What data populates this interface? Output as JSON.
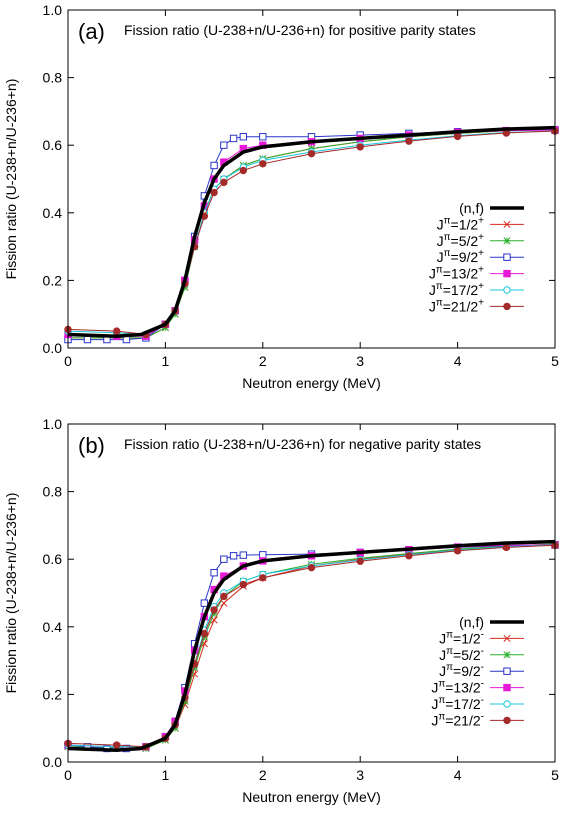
{
  "chart_data": [
    {
      "type": "line",
      "panel_label": "(a)",
      "title": "Fission ratio (U-238+n/U-236+n) for positive parity states",
      "xlabel": "Neutron energy (MeV)",
      "ylabel": "Fission ratio (U-238+n/U-236+n)",
      "xlim": [
        0,
        5
      ],
      "ylim": [
        0,
        1.0
      ],
      "xticks": [
        "0",
        "1",
        "2",
        "3",
        "4",
        "5"
      ],
      "yticks": [
        "0.0",
        "0.2",
        "0.4",
        "0.6",
        "0.8",
        "1.0"
      ],
      "legend_position": "right",
      "series": [
        {
          "name": "(n,f)",
          "color": "#000000",
          "marker": "none",
          "width": 3.5,
          "x": [
            0,
            0.5,
            0.75,
            1.0,
            1.1,
            1.2,
            1.3,
            1.4,
            1.5,
            1.6,
            1.8,
            2.0,
            2.5,
            3.0,
            3.5,
            4.0,
            4.5,
            5.0
          ],
          "y": [
            0.04,
            0.035,
            0.04,
            0.07,
            0.11,
            0.2,
            0.33,
            0.43,
            0.5,
            0.54,
            0.58,
            0.595,
            0.61,
            0.62,
            0.63,
            0.64,
            0.648,
            0.652
          ]
        },
        {
          "name": "Jπ=1/2+",
          "label_base": "J",
          "label_sup1": "π",
          "label_mid": "=1/2",
          "label_sup2": "+",
          "color": "#d62a1e",
          "marker": "cross",
          "x": [
            0,
            0.8,
            1.0,
            1.1,
            1.2,
            1.3,
            1.4,
            1.5,
            1.6,
            1.8,
            2.0,
            2.5,
            3.0,
            3.5,
            4.0,
            4.5,
            5.0
          ],
          "y": [
            0.03,
            0.03,
            0.06,
            0.1,
            0.18,
            0.3,
            0.4,
            0.47,
            0.5,
            0.54,
            0.56,
            0.59,
            0.61,
            0.625,
            0.635,
            0.643,
            0.647
          ]
        },
        {
          "name": "Jπ=5/2+",
          "label_base": "J",
          "label_sup1": "π",
          "label_mid": "=5/2",
          "label_sup2": "+",
          "color": "#2bb02b",
          "marker": "star",
          "x": [
            0,
            0.8,
            1.0,
            1.1,
            1.2,
            1.3,
            1.4,
            1.5,
            1.6,
            1.8,
            2.0,
            2.5,
            3.0,
            3.5,
            4.0,
            4.5,
            5.0
          ],
          "y": [
            0.03,
            0.03,
            0.06,
            0.1,
            0.18,
            0.3,
            0.4,
            0.47,
            0.5,
            0.54,
            0.56,
            0.59,
            0.61,
            0.625,
            0.635,
            0.643,
            0.647
          ]
        },
        {
          "name": "Jπ=9/2+",
          "label_base": "J",
          "label_sup1": "π",
          "label_mid": "=9/2",
          "label_sup2": "+",
          "color": "#2a35c8",
          "marker": "square",
          "x": [
            0,
            0.2,
            0.4,
            0.6,
            0.8,
            1.0,
            1.1,
            1.2,
            1.3,
            1.4,
            1.5,
            1.6,
            1.7,
            1.8,
            2.0,
            2.5,
            3.0,
            3.5,
            4.0,
            4.5,
            5.0
          ],
          "y": [
            0.025,
            0.025,
            0.025,
            0.025,
            0.03,
            0.07,
            0.11,
            0.2,
            0.33,
            0.45,
            0.54,
            0.6,
            0.62,
            0.625,
            0.625,
            0.625,
            0.63,
            0.635,
            0.64,
            0.643,
            0.645
          ]
        },
        {
          "name": "Jπ=13/2+",
          "label_base": "J",
          "label_sup1": "π",
          "label_mid": "=13/2",
          "label_sup2": "+",
          "color": "#e619d6",
          "marker": "filled-square",
          "x": [
            0,
            0.5,
            0.8,
            1.0,
            1.1,
            1.2,
            1.3,
            1.4,
            1.5,
            1.6,
            1.8,
            2.0,
            2.5,
            3.0,
            3.5,
            4.0,
            4.5,
            5.0
          ],
          "y": [
            0.04,
            0.035,
            0.035,
            0.07,
            0.11,
            0.2,
            0.32,
            0.42,
            0.5,
            0.55,
            0.59,
            0.6,
            0.61,
            0.62,
            0.63,
            0.638,
            0.643,
            0.645
          ]
        },
        {
          "name": "Jπ=17/2+",
          "label_base": "J",
          "label_sup1": "π",
          "label_mid": "=17/2",
          "label_sup2": "+",
          "color": "#19c8dc",
          "marker": "circle",
          "x": [
            0,
            0.5,
            0.8,
            1.0,
            1.1,
            1.2,
            1.3,
            1.4,
            1.5,
            1.6,
            1.8,
            2.0,
            2.5,
            3.0,
            3.5,
            4.0,
            4.5,
            5.0
          ],
          "y": [
            0.05,
            0.045,
            0.04,
            0.07,
            0.11,
            0.19,
            0.3,
            0.4,
            0.47,
            0.5,
            0.535,
            0.555,
            0.58,
            0.6,
            0.615,
            0.628,
            0.638,
            0.642
          ]
        },
        {
          "name": "Jπ=21/2+",
          "label_base": "J",
          "label_sup1": "π",
          "label_mid": "=21/2",
          "label_sup2": "+",
          "color": "#a52a2a",
          "marker": "filled-circle",
          "x": [
            0,
            0.5,
            0.8,
            1.0,
            1.1,
            1.2,
            1.3,
            1.4,
            1.5,
            1.6,
            1.8,
            2.0,
            2.5,
            3.0,
            3.5,
            4.0,
            4.5,
            5.0
          ],
          "y": [
            0.055,
            0.05,
            0.04,
            0.07,
            0.11,
            0.19,
            0.3,
            0.39,
            0.46,
            0.49,
            0.525,
            0.545,
            0.575,
            0.595,
            0.612,
            0.626,
            0.636,
            0.642
          ]
        }
      ]
    },
    {
      "type": "line",
      "panel_label": "(b)",
      "title": "Fission ratio (U-238+n/U-236+n) for negative parity states",
      "xlabel": "Neutron energy (MeV)",
      "ylabel": "Fission ratio (U-238+n/U-236+n)",
      "xlim": [
        0,
        5
      ],
      "ylim": [
        0,
        1.0
      ],
      "xticks": [
        "0",
        "1",
        "2",
        "3",
        "4",
        "5"
      ],
      "yticks": [
        "0.0",
        "0.2",
        "0.4",
        "0.6",
        "0.8",
        "1.0"
      ],
      "legend_position": "right",
      "series": [
        {
          "name": "(n,f)",
          "color": "#000000",
          "marker": "none",
          "width": 3.5,
          "x": [
            0,
            0.5,
            0.75,
            1.0,
            1.1,
            1.2,
            1.3,
            1.4,
            1.5,
            1.6,
            1.8,
            2.0,
            2.5,
            3.0,
            3.5,
            4.0,
            4.5,
            5.0
          ],
          "y": [
            0.04,
            0.035,
            0.04,
            0.07,
            0.11,
            0.2,
            0.33,
            0.43,
            0.5,
            0.54,
            0.58,
            0.595,
            0.61,
            0.62,
            0.63,
            0.64,
            0.648,
            0.652
          ]
        },
        {
          "name": "Jπ=1/2-",
          "label_base": "J",
          "label_sup1": "π",
          "label_mid": "=1/2",
          "label_sup2": "-",
          "color": "#d62a1e",
          "marker": "cross",
          "x": [
            0,
            0.8,
            1.0,
            1.1,
            1.2,
            1.3,
            1.4,
            1.5,
            1.6,
            1.8,
            2.0,
            2.5,
            3.0,
            3.5,
            4.0,
            4.5,
            5.0
          ],
          "y": [
            0.045,
            0.04,
            0.065,
            0.1,
            0.17,
            0.26,
            0.35,
            0.42,
            0.47,
            0.52,
            0.545,
            0.58,
            0.6,
            0.615,
            0.628,
            0.638,
            0.644
          ]
        },
        {
          "name": "Jπ=5/2-",
          "label_base": "J",
          "label_sup1": "π",
          "label_mid": "=5/2",
          "label_sup2": "-",
          "color": "#2bb02b",
          "marker": "star",
          "x": [
            0,
            0.8,
            1.0,
            1.1,
            1.2,
            1.3,
            1.4,
            1.5,
            1.6,
            1.8,
            2.0,
            2.5,
            3.0,
            3.5,
            4.0,
            4.5,
            5.0
          ],
          "y": [
            0.045,
            0.04,
            0.065,
            0.1,
            0.18,
            0.28,
            0.37,
            0.44,
            0.49,
            0.535,
            0.555,
            0.585,
            0.603,
            0.617,
            0.63,
            0.639,
            0.645
          ]
        },
        {
          "name": "Jπ=9/2-",
          "label_base": "J",
          "label_sup1": "π",
          "label_mid": "=9/2",
          "label_sup2": "-",
          "color": "#2a35c8",
          "marker": "square",
          "x": [
            0,
            0.2,
            0.4,
            0.6,
            0.8,
            1.0,
            1.1,
            1.2,
            1.3,
            1.4,
            1.5,
            1.6,
            1.7,
            1.8,
            2.0,
            2.5,
            3.0,
            3.5,
            4.0,
            4.5,
            5.0
          ],
          "y": [
            0.05,
            0.045,
            0.04,
            0.04,
            0.045,
            0.075,
            0.12,
            0.22,
            0.35,
            0.47,
            0.56,
            0.6,
            0.61,
            0.612,
            0.613,
            0.615,
            0.62,
            0.628,
            0.635,
            0.64,
            0.642
          ]
        },
        {
          "name": "Jπ=13/2-",
          "label_base": "J",
          "label_sup1": "π",
          "label_mid": "=13/2",
          "label_sup2": "-",
          "color": "#e619d6",
          "marker": "filled-square",
          "x": [
            0,
            0.5,
            0.8,
            1.0,
            1.1,
            1.2,
            1.3,
            1.4,
            1.5,
            1.6,
            1.8,
            2.0,
            2.5,
            3.0,
            3.5,
            4.0,
            4.5,
            5.0
          ],
          "y": [
            0.05,
            0.045,
            0.045,
            0.075,
            0.12,
            0.21,
            0.33,
            0.43,
            0.51,
            0.55,
            0.58,
            0.595,
            0.61,
            0.62,
            0.628,
            0.636,
            0.641,
            0.643
          ]
        },
        {
          "name": "Jπ=17/2-",
          "label_base": "J",
          "label_sup1": "π",
          "label_mid": "=17/2",
          "label_sup2": "-",
          "color": "#19c8dc",
          "marker": "circle",
          "x": [
            0,
            0.5,
            0.8,
            1.0,
            1.1,
            1.2,
            1.3,
            1.4,
            1.5,
            1.6,
            1.8,
            2.0,
            2.5,
            3.0,
            3.5,
            4.0,
            4.5,
            5.0
          ],
          "y": [
            0.05,
            0.045,
            0.045,
            0.07,
            0.11,
            0.19,
            0.29,
            0.39,
            0.46,
            0.5,
            0.535,
            0.555,
            0.58,
            0.598,
            0.613,
            0.627,
            0.637,
            0.642
          ]
        },
        {
          "name": "Jπ=21/2-",
          "label_base": "J",
          "label_sup1": "π",
          "label_mid": "=21/2",
          "label_sup2": "-",
          "color": "#a52a2a",
          "marker": "filled-circle",
          "x": [
            0,
            0.5,
            0.8,
            1.0,
            1.1,
            1.2,
            1.3,
            1.4,
            1.5,
            1.6,
            1.8,
            2.0,
            2.5,
            3.0,
            3.5,
            4.0,
            4.5,
            5.0
          ],
          "y": [
            0.055,
            0.05,
            0.045,
            0.07,
            0.11,
            0.19,
            0.29,
            0.38,
            0.45,
            0.49,
            0.525,
            0.545,
            0.575,
            0.594,
            0.61,
            0.625,
            0.635,
            0.641
          ]
        }
      ]
    }
  ]
}
